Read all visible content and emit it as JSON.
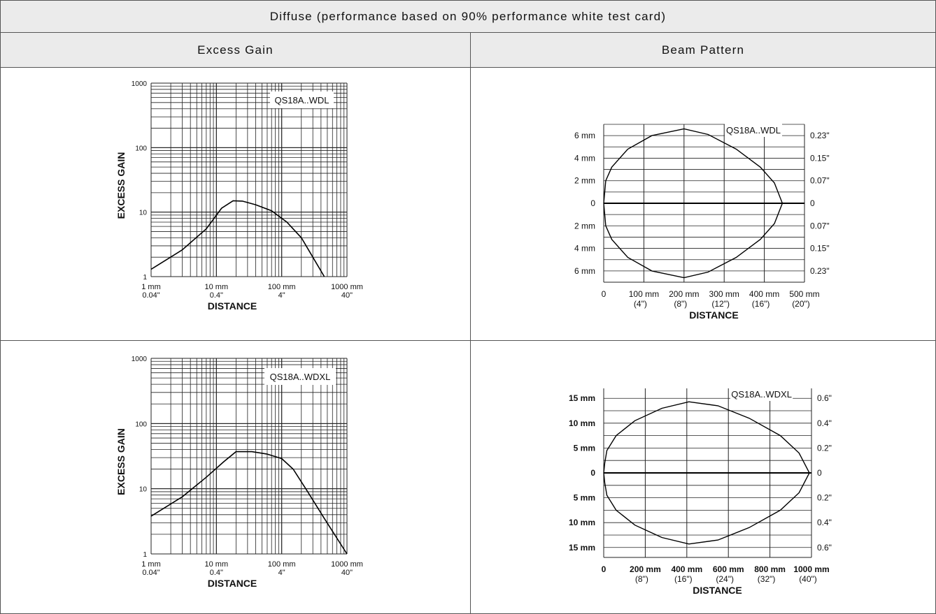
{
  "header": {
    "title": "Diffuse (performance based on 90% performance white test card)"
  },
  "columns": {
    "left": "Excess Gain",
    "right": "Beam Pattern"
  },
  "chart_data": [
    {
      "id": "gain1",
      "type": "line",
      "model": "QS18A..WDL",
      "ylabel": "EXCESS GAIN",
      "xlabel": "DISTANCE",
      "yscale": "log",
      "xscale": "log",
      "ylim": [
        1,
        1000
      ],
      "xlim": [
        1,
        1000
      ],
      "y_ticks": [
        "1",
        "10",
        "100",
        "1000"
      ],
      "x_ticks": [
        {
          "mm": "1 mm",
          "in": "0.04\""
        },
        {
          "mm": "10 mm",
          "in": "0.4\""
        },
        {
          "mm": "100 mm",
          "in": "4\""
        },
        {
          "mm": "1000 mm",
          "in": "40\""
        }
      ],
      "points": [
        [
          1,
          1.3
        ],
        [
          3,
          2.6
        ],
        [
          7,
          5.5
        ],
        [
          12,
          11.5
        ],
        [
          18,
          15
        ],
        [
          25,
          14.8
        ],
        [
          40,
          13
        ],
        [
          70,
          10.5
        ],
        [
          120,
          7
        ],
        [
          200,
          4
        ],
        [
          300,
          2
        ],
        [
          450,
          1
        ]
      ],
      "grid": true
    },
    {
      "id": "beam1",
      "type": "line",
      "model": "QS18A..WDL",
      "xlabel": "DISTANCE",
      "xlim": [
        0,
        500
      ],
      "ylim": [
        -7,
        7
      ],
      "x_ticks": [
        {
          "mm": "0",
          "in": ""
        },
        {
          "mm": "100 mm",
          "in": "(4\")"
        },
        {
          "mm": "200 mm",
          "in": "(8\")"
        },
        {
          "mm": "300 mm",
          "in": "(12\")"
        },
        {
          "mm": "400 mm",
          "in": "(16\")"
        },
        {
          "mm": "500 mm",
          "in": "(20\")"
        }
      ],
      "y_ticks_left": [
        "6 mm",
        "4 mm",
        "2 mm",
        "0",
        "2 mm",
        "4 mm",
        "6 mm"
      ],
      "y_ticks_right": [
        "0.23\"",
        "0.15\"",
        "0.07\"",
        "0",
        "0.07\"",
        "0.15\"",
        "0.23\""
      ],
      "y_tick_values": [
        6,
        4,
        2,
        0,
        -2,
        -4,
        -6
      ],
      "upper_points": [
        [
          0,
          0
        ],
        [
          5,
          2
        ],
        [
          20,
          3.2
        ],
        [
          60,
          4.8
        ],
        [
          120,
          6
        ],
        [
          200,
          6.6
        ],
        [
          260,
          6.1
        ],
        [
          330,
          4.8
        ],
        [
          390,
          3.2
        ],
        [
          425,
          1.8
        ],
        [
          445,
          0
        ]
      ],
      "grid": true
    },
    {
      "id": "gain2",
      "type": "line",
      "model": "QS18A..WDXL",
      "ylabel": "EXCESS GAIN",
      "xlabel": "DISTANCE",
      "yscale": "log",
      "xscale": "log",
      "ylim": [
        1,
        1000
      ],
      "xlim": [
        1,
        1000
      ],
      "y_ticks": [
        "1",
        "10",
        "100",
        "1000"
      ],
      "x_ticks": [
        {
          "mm": "1 mm",
          "in": "0.04\""
        },
        {
          "mm": "10 mm",
          "in": "0.4\""
        },
        {
          "mm": "100 mm",
          "in": "4\""
        },
        {
          "mm": "1000 mm",
          "in": "40\""
        }
      ],
      "points": [
        [
          1,
          3.8
        ],
        [
          3,
          7.5
        ],
        [
          7,
          15
        ],
        [
          13,
          26
        ],
        [
          20,
          37
        ],
        [
          35,
          37
        ],
        [
          60,
          34
        ],
        [
          100,
          29
        ],
        [
          150,
          20
        ],
        [
          250,
          9
        ],
        [
          450,
          3.5
        ],
        [
          1000,
          1
        ]
      ],
      "grid": true
    },
    {
      "id": "beam2",
      "type": "line",
      "model": "QS18A..WDXL",
      "xlabel": "DISTANCE",
      "xlim": [
        0,
        1000
      ],
      "ylim": [
        -17,
        17
      ],
      "x_ticks": [
        {
          "mm": "0",
          "in": ""
        },
        {
          "mm": "200 mm",
          "in": "(8\")"
        },
        {
          "mm": "400 mm",
          "in": "(16\")"
        },
        {
          "mm": "600 mm",
          "in": "(24\")"
        },
        {
          "mm": "800 mm",
          "in": "(32\")"
        },
        {
          "mm": "1000 mm",
          "in": "(40\")"
        }
      ],
      "y_ticks_left": [
        "15 mm",
        "10 mm",
        "5 mm",
        "0",
        "5 mm",
        "10 mm",
        "15 mm"
      ],
      "y_ticks_right": [
        "0.6\"",
        "0.4\"",
        "0.2\"",
        "0",
        "0.2\"",
        "0.4\"",
        "0.6\""
      ],
      "y_tick_values": [
        15,
        10,
        5,
        0,
        -5,
        -10,
        -15
      ],
      "upper_points": [
        [
          0,
          0
        ],
        [
          5,
          2
        ],
        [
          15,
          4.5
        ],
        [
          60,
          7.5
        ],
        [
          150,
          10.5
        ],
        [
          280,
          13
        ],
        [
          410,
          14.3
        ],
        [
          550,
          13.5
        ],
        [
          700,
          11
        ],
        [
          850,
          7.5
        ],
        [
          940,
          4
        ],
        [
          990,
          0
        ]
      ],
      "grid": true
    }
  ]
}
